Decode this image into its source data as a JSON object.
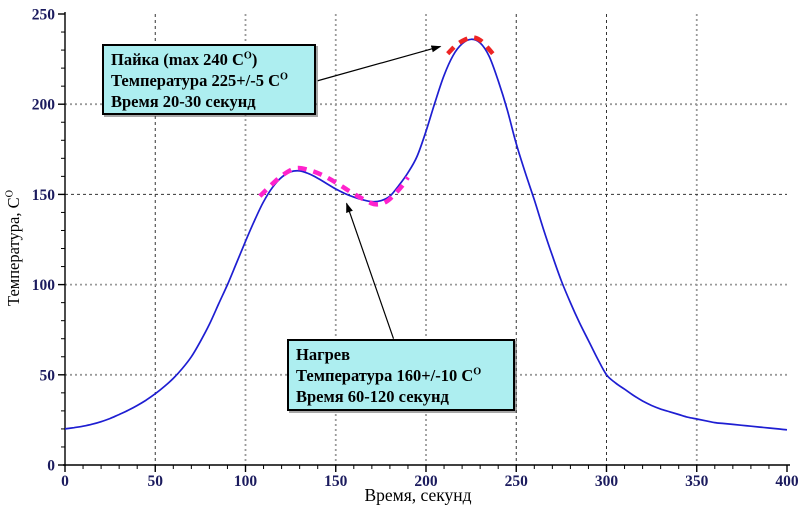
{
  "chart_data": {
    "type": "line",
    "title": "",
    "xlabel": "Время, секунд",
    "ylabel": "Температура, C^O",
    "xlim": [
      0,
      400
    ],
    "ylim": [
      0,
      250
    ],
    "x_tick_labels": [
      "0",
      "50",
      "100",
      "150",
      "200",
      "250",
      "300",
      "350",
      "400"
    ],
    "y_tick_labels": [
      "0",
      "50",
      "100",
      "150",
      "200",
      "250"
    ],
    "x_major_step": 50,
    "x_minor_step": 10,
    "y_major_step": 50,
    "y_minor_step": 10,
    "grid": "dotted gridlines at every 50 units, no top/right frame",
    "legend_position": "none",
    "tick_label_color": "#1b1b5e",
    "series": [
      {
        "name": "temperature-profile",
        "color": "#1e1ed2",
        "style": "solid",
        "points": [
          [
            0,
            20
          ],
          [
            5,
            20.7
          ],
          [
            10,
            21.5
          ],
          [
            15,
            22.6
          ],
          [
            20,
            24
          ],
          [
            25,
            25.8
          ],
          [
            30,
            28
          ],
          [
            35,
            30.3
          ],
          [
            40,
            33
          ],
          [
            45,
            36
          ],
          [
            50,
            39.5
          ],
          [
            55,
            43.5
          ],
          [
            60,
            48
          ],
          [
            65,
            53.5
          ],
          [
            70,
            60
          ],
          [
            75,
            68.5
          ],
          [
            80,
            78
          ],
          [
            85,
            89
          ],
          [
            90,
            100
          ],
          [
            95,
            112
          ],
          [
            100,
            124
          ],
          [
            105,
            135.5
          ],
          [
            110,
            146
          ],
          [
            115,
            154
          ],
          [
            120,
            159.5
          ],
          [
            125,
            162.5
          ],
          [
            130,
            163
          ],
          [
            135,
            161.5
          ],
          [
            140,
            159
          ],
          [
            145,
            156
          ],
          [
            150,
            153
          ],
          [
            155,
            150.5
          ],
          [
            160,
            148.5
          ],
          [
            165,
            147
          ],
          [
            170,
            146
          ],
          [
            175,
            146.5
          ],
          [
            180,
            149
          ],
          [
            185,
            155
          ],
          [
            190,
            162
          ],
          [
            195,
            171
          ],
          [
            200,
            185
          ],
          [
            205,
            201
          ],
          [
            210,
            216
          ],
          [
            215,
            227
          ],
          [
            220,
            233.5
          ],
          [
            225,
            236
          ],
          [
            230,
            234
          ],
          [
            235,
            226.5
          ],
          [
            240,
            213
          ],
          [
            245,
            197
          ],
          [
            250,
            178
          ],
          [
            255,
            162
          ],
          [
            260,
            147
          ],
          [
            265,
            131
          ],
          [
            270,
            116
          ],
          [
            275,
            102
          ],
          [
            280,
            90
          ],
          [
            285,
            79
          ],
          [
            290,
            69
          ],
          [
            295,
            59
          ],
          [
            300,
            50
          ],
          [
            305,
            45.5
          ],
          [
            310,
            42
          ],
          [
            315,
            38.5
          ],
          [
            320,
            35.5
          ],
          [
            325,
            33
          ],
          [
            330,
            31
          ],
          [
            335,
            29.5
          ],
          [
            340,
            28
          ],
          [
            345,
            26.5
          ],
          [
            350,
            25.5
          ],
          [
            355,
            24.5
          ],
          [
            360,
            23.5
          ],
          [
            365,
            23
          ],
          [
            370,
            22.5
          ],
          [
            375,
            22
          ],
          [
            380,
            21.5
          ],
          [
            385,
            21
          ],
          [
            390,
            20.5
          ],
          [
            395,
            20
          ],
          [
            400,
            19.5
          ]
        ]
      },
      {
        "name": "heating-zone-highlight",
        "color": "#ff22cc",
        "style": "thick-dashed",
        "points": [
          [
            108,
            149
          ],
          [
            114,
            155
          ],
          [
            121,
            161
          ],
          [
            128,
            164.5
          ],
          [
            135,
            163.5
          ],
          [
            143,
            160.5
          ],
          [
            151,
            156
          ],
          [
            158,
            151.5
          ],
          [
            165,
            147.5
          ],
          [
            172,
            144.5
          ],
          [
            178,
            146
          ],
          [
            183,
            150.5
          ],
          [
            187,
            155
          ],
          [
            190,
            159.5
          ]
        ]
      },
      {
        "name": "soldering-zone-highlight",
        "color": "#ee2424",
        "style": "thick-dashed",
        "points": [
          [
            212,
            228
          ],
          [
            217,
            233
          ],
          [
            222,
            236
          ],
          [
            226,
            237
          ],
          [
            230,
            235.5
          ],
          [
            234,
            231.5
          ],
          [
            237,
            228
          ]
        ]
      }
    ],
    "annotations": [
      {
        "id": "soldering-note",
        "lines": [
          "Пайка (max 240 C^O)",
          "Температура 225+/-5 C^O",
          "Время 20-30 секунд"
        ],
        "box_fill": "#adeef0",
        "arrow_from_xy": [
          140,
          213
        ],
        "arrow_to_xy": [
          208,
          232
        ]
      },
      {
        "id": "heating-note",
        "lines": [
          "Нагрев",
          "Температура 160+/-10 C^O",
          "Время 60-120 секунд"
        ],
        "box_fill": "#adeef0",
        "arrow_from_xy": [
          182,
          70
        ],
        "arrow_to_xy": [
          156,
          145
        ]
      }
    ]
  }
}
